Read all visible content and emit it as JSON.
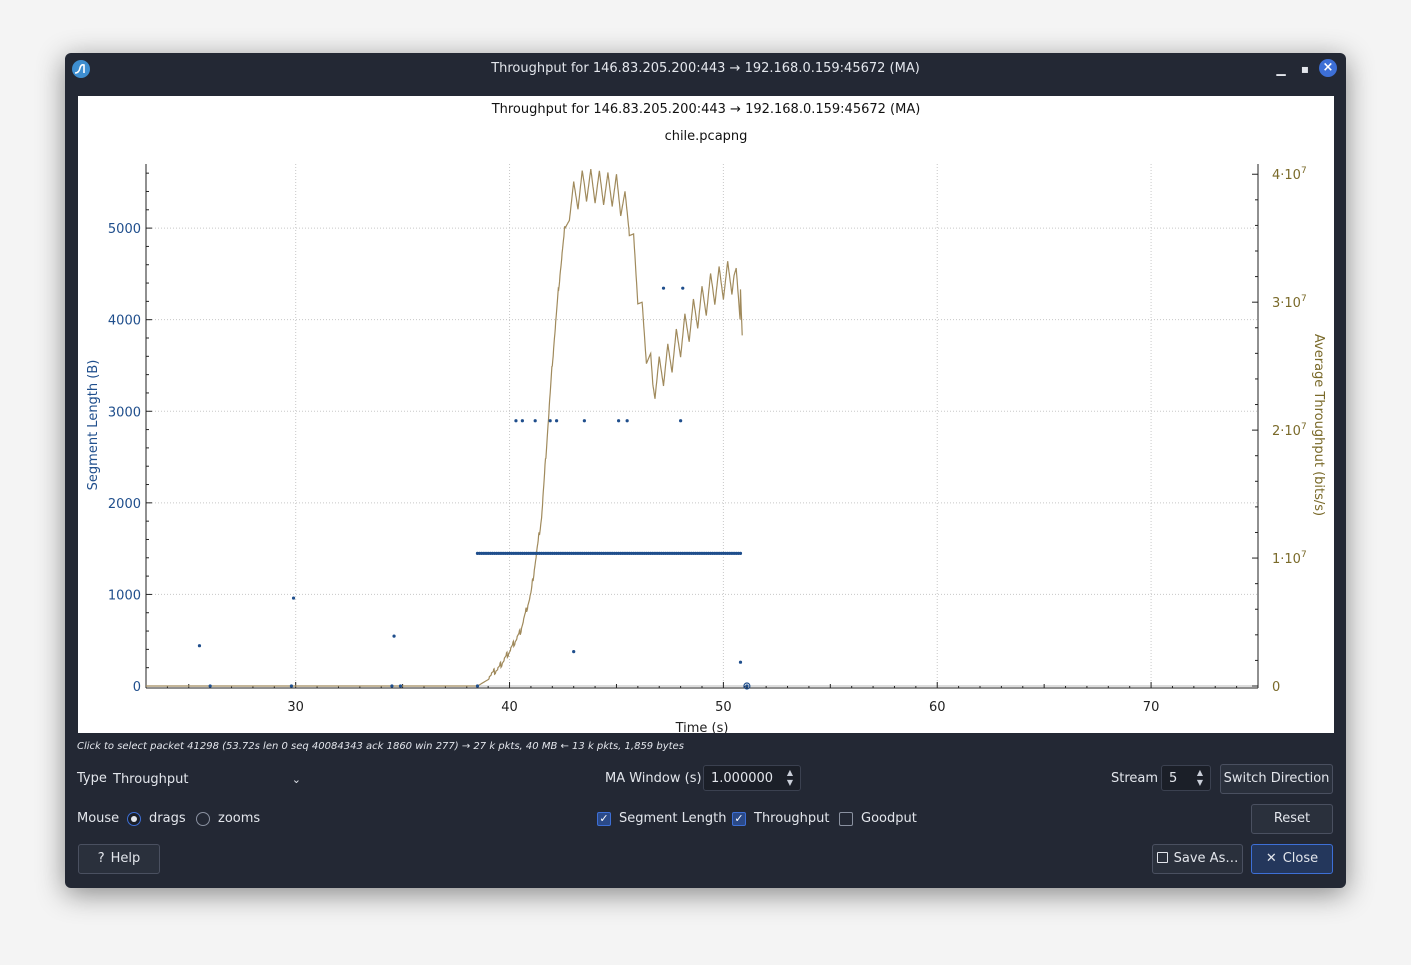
{
  "window": {
    "title": "Throughput for 146.83.205.200:443 → 192.168.0.159:45672 (MA)",
    "minimize_icon": "minimize-icon",
    "maximize_icon": "maximize-icon",
    "close_icon": "close-icon"
  },
  "chart_data": {
    "type": "scatter",
    "title": "Throughput for 146.83.205.200:443 → 192.168.0.159:45672 (MA)",
    "subtitle": "chile.pcapng",
    "xlabel": "Time (s)",
    "ylabel": "Segment Length (B)",
    "y2label": "Average Throughput (bits/s)",
    "xlim": [
      23,
      75
    ],
    "ylim": [
      0,
      5700
    ],
    "y2lim": [
      0,
      40800000
    ],
    "x_ticks": [
      30,
      40,
      50,
      60,
      70
    ],
    "y_ticks": [
      0,
      1000,
      2000,
      3000,
      4000,
      5000
    ],
    "y2_ticks": [
      {
        "v": 0,
        "base": "0",
        "exp": ""
      },
      {
        "v": 10000000,
        "base": "1·10",
        "exp": "7"
      },
      {
        "v": 20000000,
        "base": "2·10",
        "exp": "7"
      },
      {
        "v": 30000000,
        "base": "3·10",
        "exp": "7"
      },
      {
        "v": 40000000,
        "base": "4·10",
        "exp": "7"
      }
    ],
    "grid": true,
    "colors": {
      "segment": "#1f4e8c",
      "throughput": "#a08a5c",
      "axis_left": "#1f4e8c",
      "axis_right": "#7a6a2a"
    },
    "series": [
      {
        "name": "Segment Length",
        "axis": "left",
        "points": [
          [
            25.5,
            440
          ],
          [
            26.0,
            0
          ],
          [
            29.8,
            0
          ],
          [
            29.9,
            960
          ],
          [
            34.5,
            0
          ],
          [
            34.6,
            545
          ],
          [
            34.9,
            0
          ],
          [
            38.5,
            0
          ],
          [
            43.0,
            375
          ],
          [
            50.8,
            260
          ],
          [
            51.1,
            0
          ],
          [
            40.3,
            2896
          ],
          [
            40.6,
            2896
          ],
          [
            41.2,
            2896
          ],
          [
            41.9,
            2896
          ],
          [
            42.2,
            2896
          ],
          [
            43.5,
            2896
          ],
          [
            45.1,
            2896
          ],
          [
            45.5,
            2896
          ],
          [
            48.0,
            2896
          ],
          [
            47.2,
            4344
          ],
          [
            48.1,
            4344
          ]
        ],
        "band": {
          "y": 1448,
          "x_start": 38.5,
          "x_end": 50.8,
          "step": 0.1
        }
      },
      {
        "name": "Throughput",
        "axis": "right",
        "curve": [
          [
            23.0,
            0
          ],
          [
            38.5,
            0
          ],
          [
            39.0,
            500000
          ],
          [
            39.5,
            1200000
          ],
          [
            40.0,
            2500000
          ],
          [
            40.5,
            4000000
          ],
          [
            41.0,
            7000000
          ],
          [
            41.5,
            13000000
          ],
          [
            42.0,
            25000000
          ],
          [
            42.3,
            31000000
          ],
          [
            42.8,
            39000000
          ],
          [
            43.5,
            40500000
          ],
          [
            45.0,
            40000000
          ],
          [
            45.6,
            38000000
          ],
          [
            46.2,
            30000000
          ],
          [
            46.7,
            25000000
          ],
          [
            47.5,
            27000000
          ],
          [
            48.5,
            30000000
          ],
          [
            49.5,
            32500000
          ],
          [
            50.5,
            33500000
          ],
          [
            50.8,
            31000000
          ],
          [
            50.9,
            26500000
          ]
        ]
      }
    ]
  },
  "status_hint": "Click to select packet 41298 (53.72s len 0 seq 40084343 ack 1860 win 277) → 27 k pkts, 40 MB ← 13 k pkts, 1,859 bytes",
  "controls": {
    "type_label": "Type",
    "type_value": "Throughput",
    "ma_window_label": "MA Window (s)",
    "ma_window_value": "1.000000",
    "stream_label": "Stream",
    "stream_value": "5",
    "switch_direction": "Switch Direction",
    "mouse_label": "Mouse",
    "drags_label": "drags",
    "zooms_label": "zooms",
    "segment_length_label": "Segment Length",
    "throughput_label": "Throughput",
    "goodput_label": "Goodput",
    "reset_label": "Reset",
    "help_label": "Help",
    "save_as_label": "Save As…",
    "close_label": "Close",
    "drags_checked": true,
    "zooms_checked": false,
    "segment_length_checked": true,
    "throughput_checked": true,
    "goodput_checked": false
  }
}
